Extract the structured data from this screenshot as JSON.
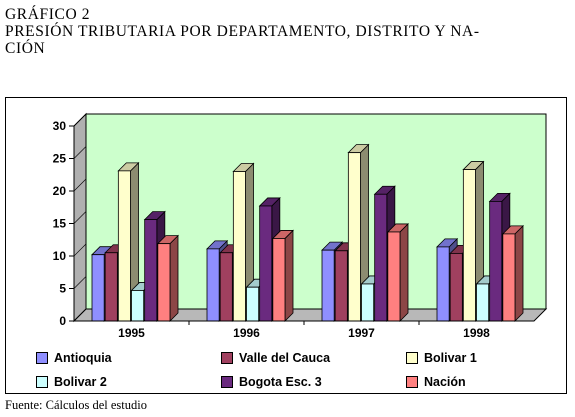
{
  "heading": {
    "line1": "GRÁFICO 2",
    "line2": "PRESIÓN TRIBUTARIA POR DEPARTAMENTO, DISTRITO Y NA-",
    "line3": "CIÓN"
  },
  "source": "Fuente: Cálculos del estudio",
  "chart_data": {
    "type": "bar",
    "style": "3d-clustered",
    "categories": [
      "1995",
      "1996",
      "1997",
      "1998"
    ],
    "series": [
      {
        "name": "Antioquia",
        "color": "#8f8fff",
        "values": [
          10.2,
          11.1,
          10.9,
          11.4
        ]
      },
      {
        "name": "Valle del Cauca",
        "color": "#a0405f",
        "values": [
          10.5,
          10.5,
          10.8,
          10.4
        ]
      },
      {
        "name": "Bolivar 1",
        "color": "#ffffcc",
        "values": [
          23.1,
          23.0,
          25.9,
          23.3
        ]
      },
      {
        "name": "Bolivar 2",
        "color": "#ccffff",
        "values": [
          4.7,
          5.2,
          5.7,
          5.7
        ]
      },
      {
        "name": "Bogota Esc. 3",
        "color": "#6a2a7f",
        "values": [
          15.6,
          17.7,
          19.5,
          18.4
        ]
      },
      {
        "name": "Nación",
        "color": "#ff8080",
        "values": [
          11.9,
          12.7,
          13.7,
          13.4
        ]
      }
    ],
    "ylim": [
      0,
      30
    ],
    "yticks": [
      0,
      5,
      10,
      15,
      20,
      25,
      30
    ],
    "title": "",
    "xlabel": "",
    "ylabel": "",
    "legend_position": "bottom",
    "wall_color": "#ccffcc",
    "grid": false
  }
}
